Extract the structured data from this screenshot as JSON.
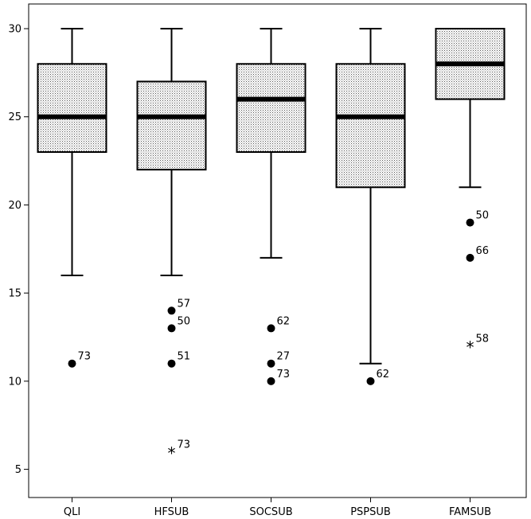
{
  "chart_data": {
    "type": "boxplot",
    "title": "",
    "xlabel": "",
    "ylabel": "",
    "ylim": [
      3.4,
      31.4
    ],
    "yticks": [
      5,
      10,
      15,
      20,
      25,
      30
    ],
    "grid": false,
    "fill_pattern": "dotted",
    "categories": [
      "QLI",
      "HFSUB",
      "SOCSUB",
      "PSPSUB",
      "FAMSUB"
    ],
    "boxes": [
      {
        "category": "QLI",
        "min": 16,
        "q1": 23,
        "median": 25,
        "q3": 28,
        "max": 30,
        "outliers": [
          {
            "value": 11,
            "label": "73",
            "marker": "circle"
          }
        ]
      },
      {
        "category": "HFSUB",
        "min": 16,
        "q1": 22,
        "median": 25,
        "q3": 27,
        "max": 30,
        "outliers": [
          {
            "value": 14,
            "label": "57",
            "marker": "circle"
          },
          {
            "value": 13,
            "label": "50",
            "marker": "circle"
          },
          {
            "value": 11,
            "label": "51",
            "marker": "circle"
          },
          {
            "value": 6,
            "label": "73",
            "marker": "star"
          }
        ]
      },
      {
        "category": "SOCSUB",
        "min": 17,
        "q1": 23,
        "median": 26,
        "q3": 28,
        "max": 30,
        "outliers": [
          {
            "value": 13,
            "label": "62",
            "marker": "circle"
          },
          {
            "value": 11,
            "label": "27",
            "marker": "circle"
          },
          {
            "value": 10,
            "label": "73",
            "marker": "circle"
          }
        ]
      },
      {
        "category": "PSPSUB",
        "min": 11,
        "q1": 21,
        "median": 25,
        "q3": 28,
        "max": 30,
        "outliers": [
          {
            "value": 10,
            "label": "62",
            "marker": "circle"
          }
        ]
      },
      {
        "category": "FAMSUB",
        "min": 21,
        "q1": 26,
        "median": 28,
        "q3": 30,
        "max": 30,
        "outliers": [
          {
            "value": 19,
            "label": "50",
            "marker": "circle"
          },
          {
            "value": 17,
            "label": "66",
            "marker": "circle"
          },
          {
            "value": 12,
            "label": "58",
            "marker": "star"
          }
        ]
      }
    ]
  }
}
